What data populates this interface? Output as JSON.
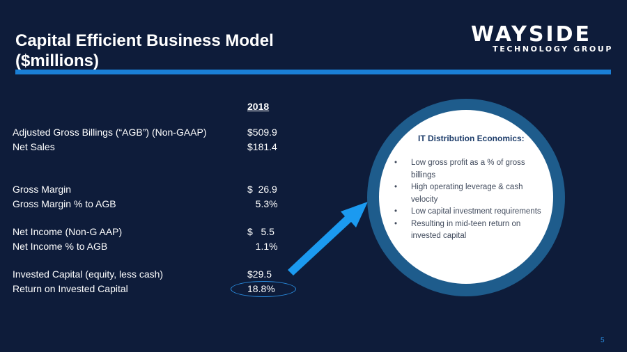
{
  "slide": {
    "title_line1": "Capital Efficient Business Model",
    "title_line2": "($millions)",
    "logo": {
      "main": "WAYSIDE",
      "sub": "TECHNOLOGY GROUP"
    },
    "page_number": "5"
  },
  "table": {
    "column_header": "2018",
    "rows": [
      {
        "label": "Adjusted Gross Billings (“AGB”) (Non-GAAP)",
        "value": "$509.9"
      },
      {
        "label": "Net Sales",
        "value": "$181.4"
      },
      {
        "label": "Gross Margin",
        "value": "$  26.9"
      },
      {
        "label": "Gross Margin % to AGB",
        "value": "   5.3%"
      },
      {
        "label": "Net Income (Non-G AAP)",
        "value": "$   5.5"
      },
      {
        "label": "Net Income %  to AGB",
        "value": "   1.1%"
      },
      {
        "label": "Invested Capital (equity, less cash)",
        "value": "$29.5"
      },
      {
        "label": "Return on Invested Capital",
        "value": "18.8%"
      }
    ]
  },
  "callout": {
    "title": "IT Distribution Economics:",
    "bullets": [
      "Low gross profit as a % of gross billings",
      "High operating leverage & cash velocity",
      "Low capital investment requirements",
      "Resulting in mid-teen return on invested capital"
    ]
  },
  "colors": {
    "background": "#0e1c3a",
    "accent": "#1a7fd6",
    "circle_ring": "#1e5c8c",
    "arrow": "#1b9af0"
  }
}
